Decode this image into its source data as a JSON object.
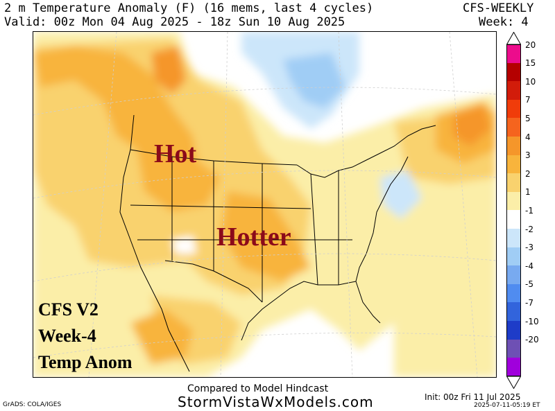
{
  "header": {
    "title_line1": "2 m Temperature Anomaly (F) (16 mems, last 4 cycles)",
    "title_line2": "Valid: 00z Mon 04 Aug 2025 - 18z Sun 10 Aug 2025",
    "model": "CFS-WEEKLY",
    "week": "Week: 4"
  },
  "map_labels": {
    "hot": "Hot",
    "hotter": "Hotter",
    "caption_line1": "CFS V2",
    "caption_line2": "Week-4",
    "caption_line3": "Temp Anom"
  },
  "colorbar": {
    "labels": [
      "20",
      "15",
      "10",
      "7",
      "5",
      "4",
      "3",
      "2",
      "1",
      "-1",
      "-2",
      "-3",
      "-4",
      "-5",
      "-7",
      "-10",
      "-20"
    ],
    "colors": [
      "#ec0c8c",
      "#b40000",
      "#d21c0a",
      "#f03c0a",
      "#f5641e",
      "#f5962a",
      "#f8b43c",
      "#f9d26e",
      "#fbeea8",
      "#ffffff",
      "#cce6fa",
      "#a0cdf5",
      "#78aaf0",
      "#508cf0",
      "#3264dc",
      "#1e3cc8",
      "#6e50b4",
      "#a000dc"
    ]
  },
  "footer": {
    "compared": "Compared to Model Hindcast",
    "site": "StormVistaWxModels.com",
    "grads": "GrADS: COLA/IGES",
    "init": "Init: 00z Fri 11 Jul 2025",
    "timestamp": "2025-07-11-05:19 ET"
  }
}
